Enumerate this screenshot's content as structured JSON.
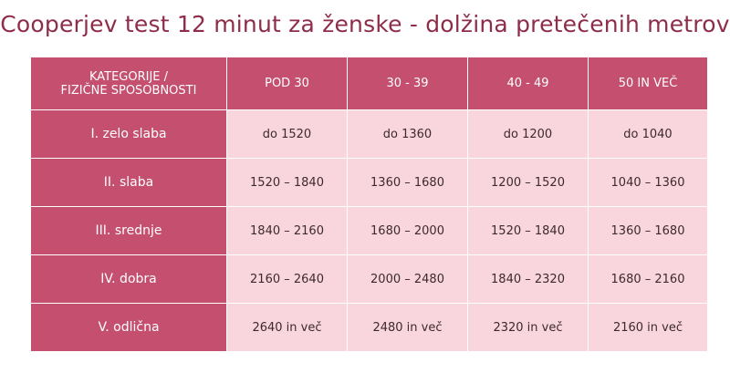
{
  "title": "Cooperjev test 12 minut za ženske - dolžina pretečenih metrov",
  "colors": {
    "title": "#8e2d49",
    "header_bg": "#c44f6e",
    "cell_bg": "#f9d6dd"
  },
  "table": {
    "header_category_line1": "KATEGORIJE /",
    "header_category_line2": "FIZIČNE SPOSOBNOSTI",
    "columns": [
      "POD 30",
      "30 - 39",
      "40 - 49",
      "50 IN VEČ"
    ],
    "rows": [
      {
        "category": "I. zelo slaba",
        "values": [
          "do 1520",
          "do 1360",
          "do 1200",
          "do 1040"
        ]
      },
      {
        "category": "II. slaba",
        "values": [
          "1520 – 1840",
          "1360 – 1680",
          "1200 – 1520",
          "1040 – 1360"
        ]
      },
      {
        "category": "III. srednje",
        "values": [
          "1840 – 2160",
          "1680 – 2000",
          "1520 – 1840",
          "1360 – 1680"
        ]
      },
      {
        "category": "IV. dobra",
        "values": [
          "2160 – 2640",
          "2000 – 2480",
          "1840 – 2320",
          "1680 – 2160"
        ]
      },
      {
        "category": "V. odlična",
        "values": [
          "2640 in več",
          "2480 in več",
          "2320 in več",
          "2160 in več"
        ]
      }
    ]
  }
}
